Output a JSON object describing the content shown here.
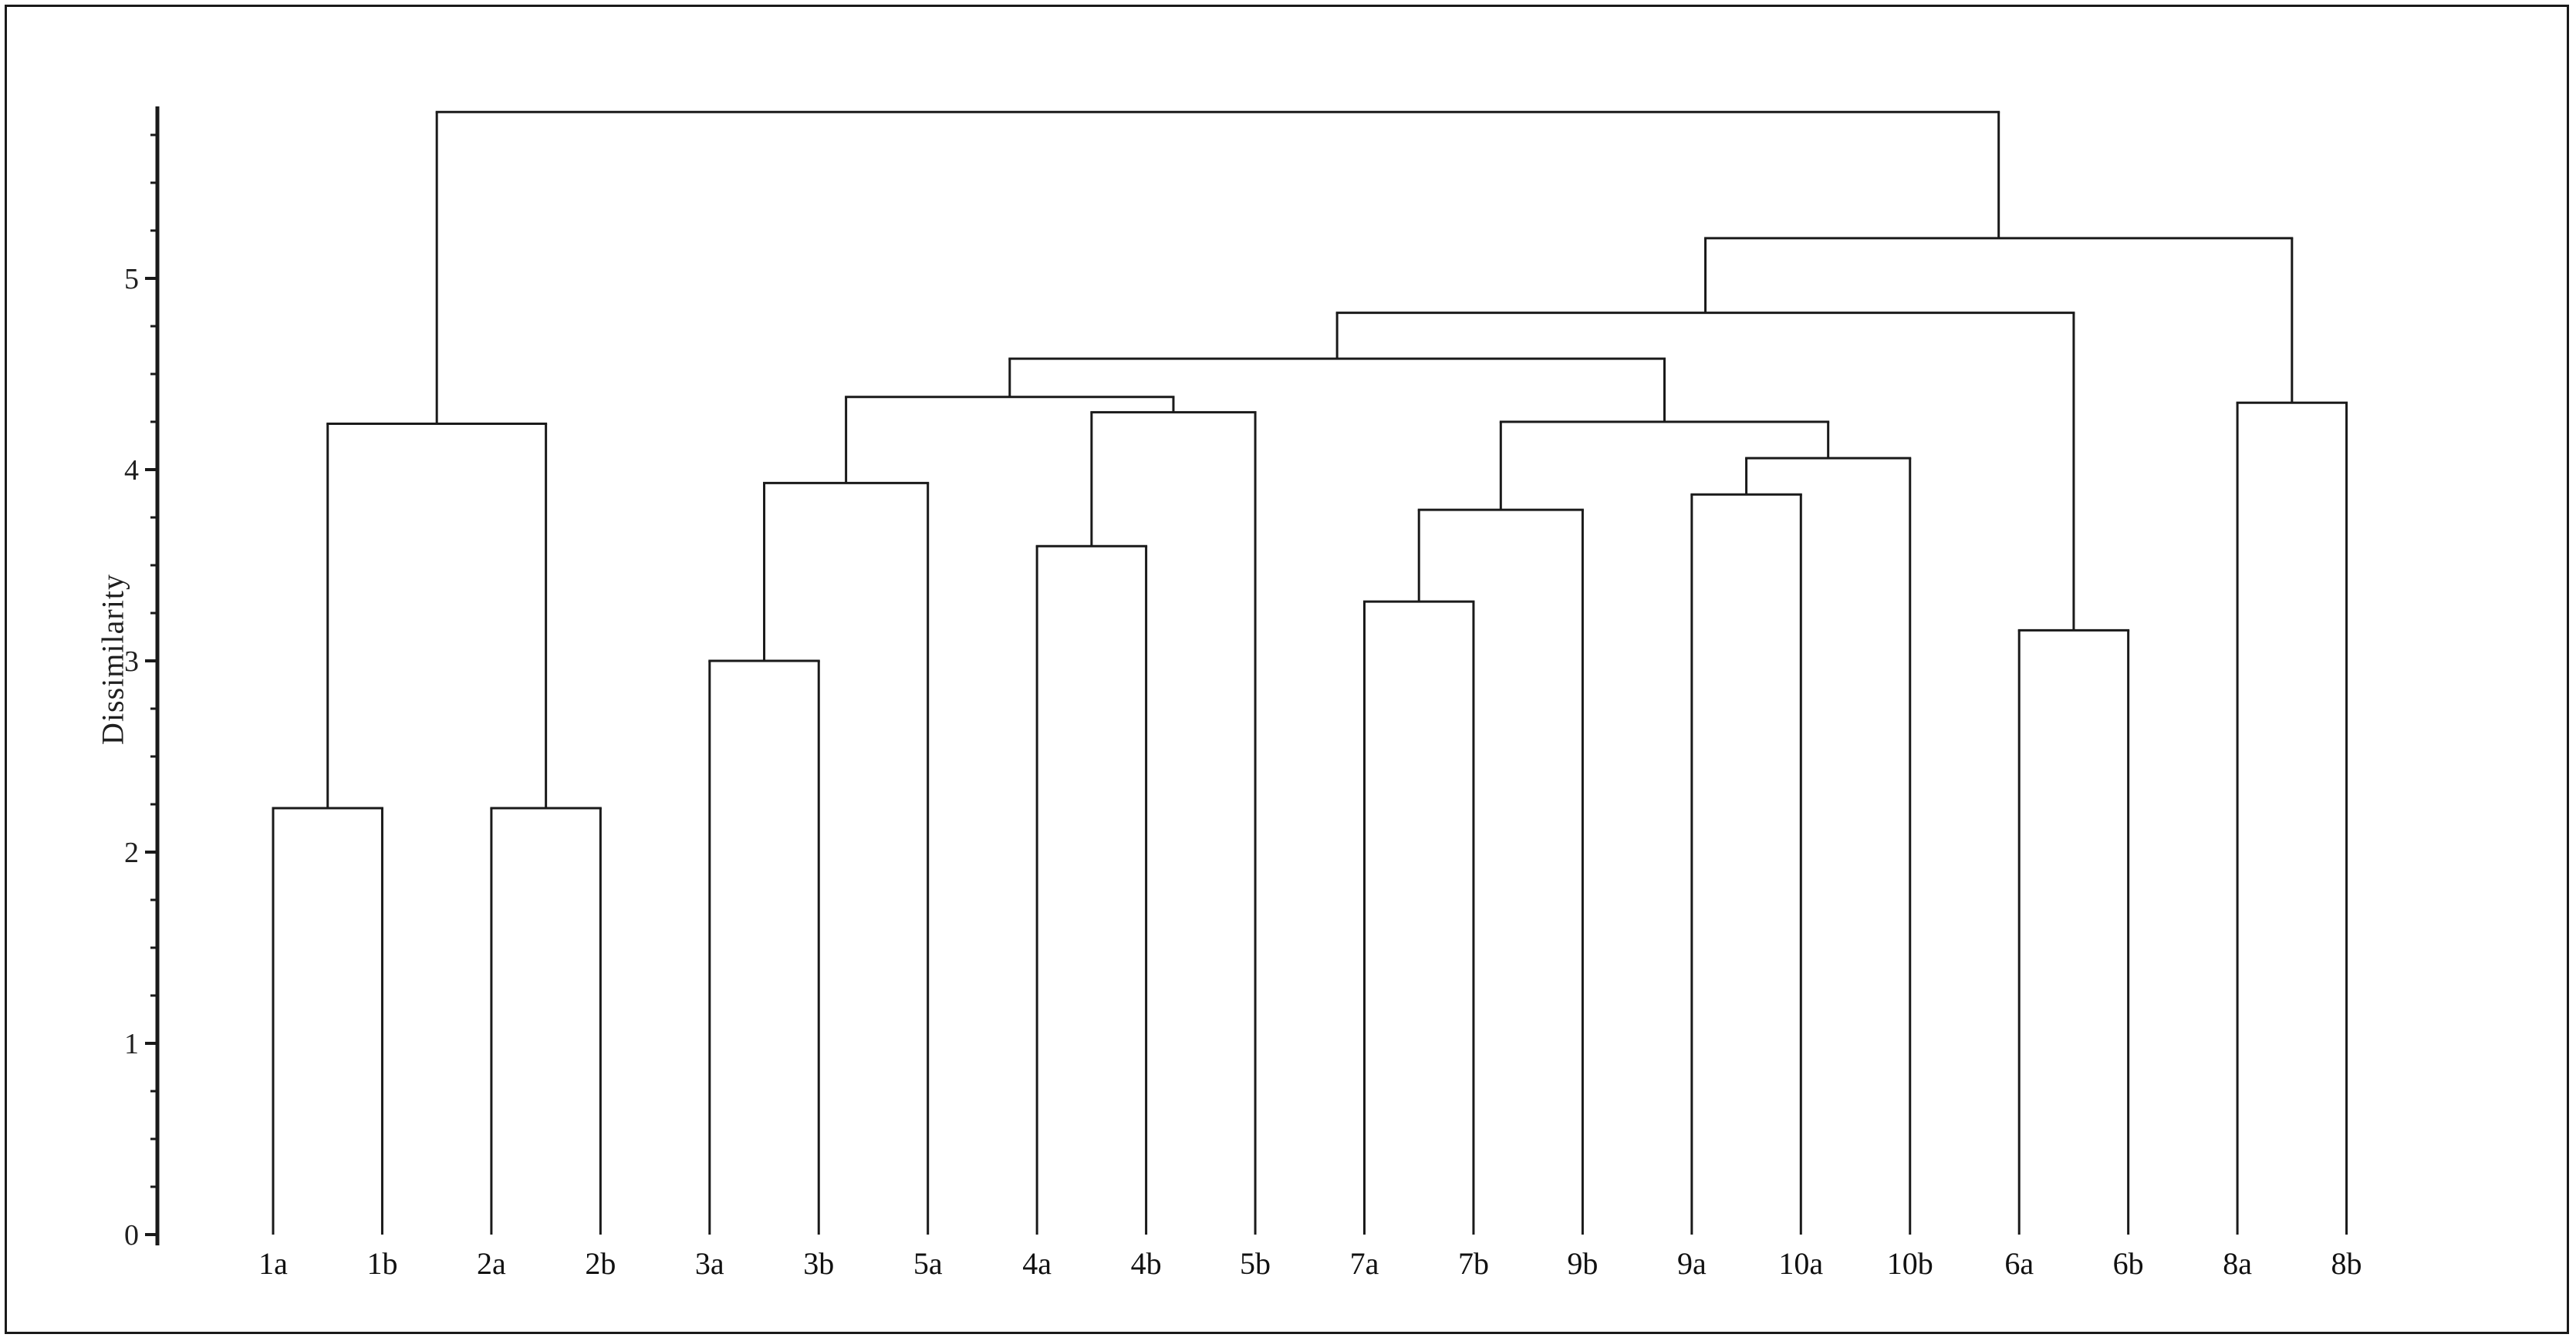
{
  "page": {
    "background_color": "#ffffff",
    "line_color": "#1a1a1a",
    "frame_color": "#1a1a1a"
  },
  "chart_data": {
    "type": "dendrogram",
    "title": "",
    "xlabel": "",
    "ylabel": "Dissimilarity",
    "ylim": [
      0,
      5.9
    ],
    "y_major_ticks": [
      0,
      1,
      2,
      3,
      4,
      5
    ],
    "y_tick_labels": [
      "0",
      "1",
      "2",
      "3",
      "4",
      "5"
    ],
    "y_minor_tick_step": 0.25,
    "grid": "off",
    "legend": "none",
    "leaves": [
      "1a",
      "1b",
      "2a",
      "2b",
      "3a",
      "3b",
      "5a",
      "4a",
      "4b",
      "5b",
      "7a",
      "7b",
      "9b",
      "9a",
      "10a",
      "10b",
      "6a",
      "6b",
      "8a",
      "8b"
    ],
    "merges": [
      {
        "id": "n1",
        "children": [
          "1a",
          "1b"
        ],
        "height": 2.23
      },
      {
        "id": "n2",
        "children": [
          "2a",
          "2b"
        ],
        "height": 2.23
      },
      {
        "id": "n3",
        "children": [
          "n1",
          "n2"
        ],
        "height": 4.24
      },
      {
        "id": "n4",
        "children": [
          "3a",
          "3b"
        ],
        "height": 3.0
      },
      {
        "id": "n5",
        "children": [
          "n4",
          "5a"
        ],
        "height": 3.93
      },
      {
        "id": "n6",
        "children": [
          "4a",
          "4b"
        ],
        "height": 3.6
      },
      {
        "id": "n7",
        "children": [
          "n6",
          "5b"
        ],
        "height": 4.3
      },
      {
        "id": "n8",
        "children": [
          "n5",
          "n7"
        ],
        "height": 4.38
      },
      {
        "id": "n9",
        "children": [
          "7a",
          "7b"
        ],
        "height": 3.31
      },
      {
        "id": "n10",
        "children": [
          "n9",
          "9b"
        ],
        "height": 3.79
      },
      {
        "id": "n11",
        "children": [
          "9a",
          "10a"
        ],
        "height": 3.87
      },
      {
        "id": "n12",
        "children": [
          "n11",
          "10b"
        ],
        "height": 4.06
      },
      {
        "id": "n13",
        "children": [
          "n10",
          "n12"
        ],
        "height": 4.25
      },
      {
        "id": "n14",
        "children": [
          "n8",
          "n13"
        ],
        "height": 4.58
      },
      {
        "id": "n15",
        "children": [
          "6a",
          "6b"
        ],
        "height": 3.16
      },
      {
        "id": "n16",
        "children": [
          "n14",
          "n15"
        ],
        "height": 4.82
      },
      {
        "id": "n17",
        "children": [
          "8a",
          "8b"
        ],
        "height": 4.35
      },
      {
        "id": "n18",
        "children": [
          "n16",
          "n17"
        ],
        "height": 5.21
      },
      {
        "id": "root",
        "children": [
          "n3",
          "n18"
        ],
        "height": 5.87
      }
    ]
  }
}
